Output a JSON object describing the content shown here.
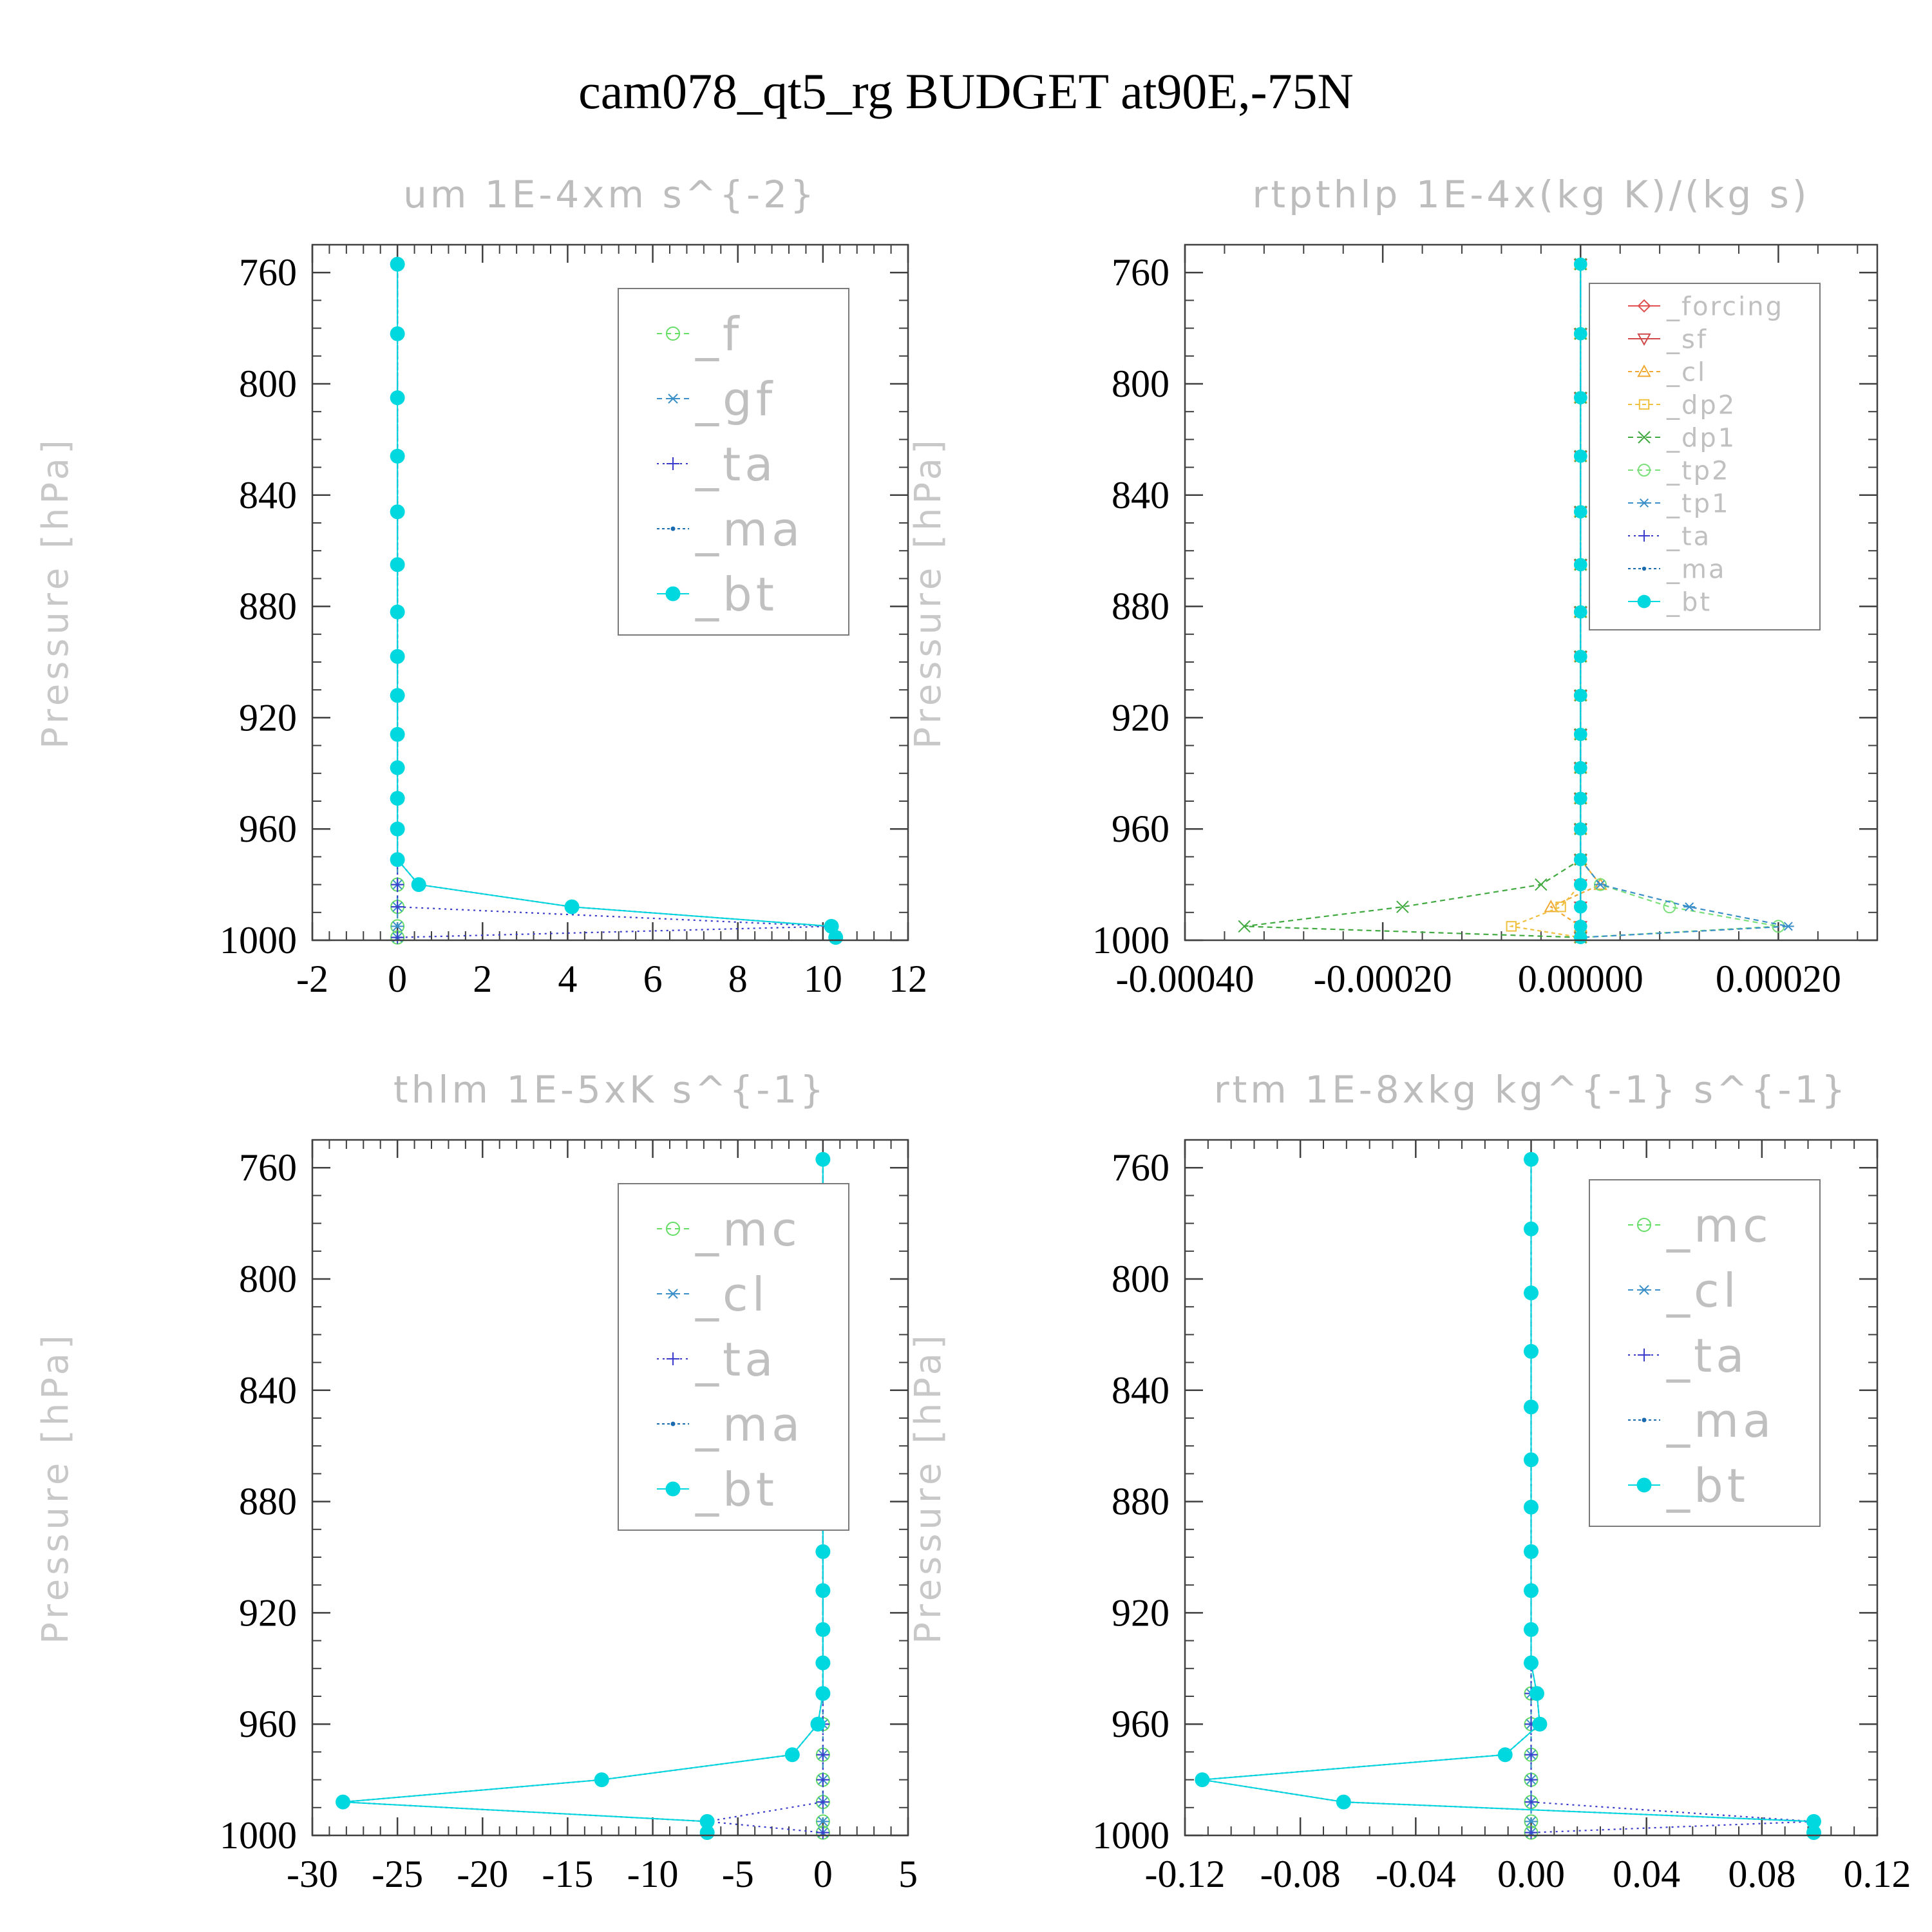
{
  "suptitle": "cam078_qt5_rg  BUDGET at90E,-75N",
  "colors": {
    "_f": "#66dd66",
    "_gf": "#3a8fc8",
    "_ta": "#3a3acc",
    "_ma": "#1a6ab0",
    "_bt": "#00d8e0",
    "_mc": "#66dd66",
    "_cl": "#3a8fc8",
    "_forcing": "#e05050",
    "_sf": "#d04848",
    "_cl_rtpthlp": "#f0a830",
    "_dp2": "#f0c040",
    "_dp1": "#40aa40",
    "_tp2": "#7ae07a",
    "_tp1": "#3a8fc8"
  },
  "chart_data": [
    {
      "type": "line",
      "title": "um   1E-4xm s^{-2}",
      "ylabel": "Pressure [hPa]",
      "xlim": [
        -2,
        12
      ],
      "ylim": [
        1000,
        750
      ],
      "xticks": [
        "-2",
        "0",
        "2",
        "4",
        "6",
        "8",
        "10",
        "12"
      ],
      "xtick_values": [
        -2,
        0,
        2,
        4,
        6,
        8,
        10,
        12
      ],
      "yticks": [
        "760",
        "800",
        "840",
        "880",
        "920",
        "960",
        "1000"
      ],
      "ytick_values": [
        760,
        800,
        840,
        880,
        920,
        960,
        1000
      ],
      "legend_position": "top-right",
      "legend_font": "large",
      "levels": [
        757,
        782,
        805,
        826,
        846,
        865,
        882,
        898,
        912,
        926,
        938,
        949,
        960,
        971,
        980,
        988,
        995,
        999
      ],
      "series": [
        {
          "name": "_f",
          "color_key": "_f",
          "marker": "circle-open",
          "dash": "8,6",
          "values": [
            0,
            0,
            0,
            0,
            0,
            0,
            0,
            0,
            0,
            0,
            0,
            0,
            0,
            0,
            0,
            0,
            0,
            0
          ]
        },
        {
          "name": "_gf",
          "color_key": "_gf",
          "marker": "asterisk",
          "dash": "8,6",
          "values": [
            0,
            0,
            0,
            0,
            0,
            0,
            0,
            0,
            0,
            0,
            0,
            0,
            0,
            0,
            0,
            0,
            0,
            0
          ]
        },
        {
          "name": "_ta",
          "color_key": "_ta",
          "marker": "plus",
          "dash": "3,6",
          "values": [
            0,
            0,
            0,
            0,
            0,
            0,
            0,
            0,
            0,
            0,
            0,
            0,
            0,
            0,
            0,
            0,
            10.2,
            0
          ]
        },
        {
          "name": "_ma",
          "color_key": "_ma",
          "marker": "dot",
          "dash": "4,4",
          "values": [
            0,
            0,
            0,
            0,
            0,
            0,
            0,
            0,
            0,
            0,
            0,
            0,
            0,
            0,
            0.5,
            4.1,
            10.2,
            10.2
          ]
        },
        {
          "name": "_bt",
          "color_key": "_bt",
          "marker": "filled",
          "dash": "",
          "values": [
            0,
            0,
            0,
            0,
            0,
            0,
            0,
            0,
            0,
            0,
            0,
            0,
            0,
            0,
            0.5,
            4.1,
            10.2,
            10.3
          ]
        }
      ]
    },
    {
      "type": "line",
      "title": "rtpthlp   1E-4x(kg K)/(kg s)",
      "ylabel": "Pressure [hPa]",
      "xlim": [
        -0.0004,
        0.0003
      ],
      "ylim": [
        1000,
        750
      ],
      "xticks": [
        "-0.00040",
        "-0.00020",
        "0.00000",
        "0.00020"
      ],
      "xtick_values": [
        -0.0004,
        -0.0002,
        0.0,
        0.0002
      ],
      "yticks": [
        "760",
        "800",
        "840",
        "880",
        "920",
        "960",
        "1000"
      ],
      "ytick_values": [
        760,
        800,
        840,
        880,
        920,
        960,
        1000
      ],
      "legend_position": "top-right",
      "legend_font": "small",
      "levels": [
        757,
        782,
        805,
        826,
        846,
        865,
        882,
        898,
        912,
        926,
        938,
        949,
        960,
        971,
        980,
        988,
        995,
        999
      ],
      "series": [
        {
          "name": "_forcing",
          "color_key": "_forcing",
          "marker": "diamond",
          "dash": "",
          "values": [
            0,
            0,
            0,
            0,
            0,
            0,
            0,
            0,
            0,
            0,
            0,
            0,
            0,
            0,
            0,
            0,
            0,
            0
          ]
        },
        {
          "name": "_sf",
          "color_key": "_sf",
          "marker": "tri-down",
          "dash": "",
          "values": [
            0,
            0,
            0,
            0,
            0,
            0,
            0,
            0,
            0,
            0,
            0,
            0,
            0,
            0,
            0,
            0,
            0,
            0
          ]
        },
        {
          "name": "_cl",
          "color_key": "_cl_rtpthlp",
          "marker": "tri-up",
          "dash": "6,5",
          "values": [
            0,
            0,
            0,
            0,
            0,
            0,
            0,
            0,
            0,
            0,
            0,
            0,
            0,
            0,
            2e-05,
            -3e-05,
            0,
            0
          ]
        },
        {
          "name": "_dp2",
          "color_key": "_dp2",
          "marker": "square",
          "dash": "6,5",
          "values": [
            0,
            0,
            0,
            0,
            0,
            0,
            0,
            0,
            0,
            0,
            0,
            0,
            0,
            0,
            0,
            -2e-05,
            -7e-05,
            0
          ]
        },
        {
          "name": "_dp1",
          "color_key": "_dp1",
          "marker": "x",
          "dash": "8,6",
          "values": [
            0,
            0,
            0,
            0,
            0,
            0,
            0,
            0,
            0,
            0,
            0,
            0,
            0,
            0,
            -4e-05,
            -0.00018,
            -0.00034,
            0
          ]
        },
        {
          "name": "_tp2",
          "color_key": "_tp2",
          "marker": "circle-open",
          "dash": "8,6",
          "values": [
            0,
            0,
            0,
            0,
            0,
            0,
            0,
            0,
            0,
            0,
            0,
            0,
            0,
            0,
            2e-05,
            9e-05,
            0.0002,
            0
          ]
        },
        {
          "name": "_tp1",
          "color_key": "_tp1",
          "marker": "asterisk",
          "dash": "8,6",
          "values": [
            0,
            0,
            0,
            0,
            0,
            0,
            0,
            0,
            0,
            0,
            0,
            0,
            0,
            0,
            2e-05,
            0.00011,
            0.00021,
            0
          ]
        },
        {
          "name": "_ta",
          "color_key": "_ta",
          "marker": "plus",
          "dash": "3,6",
          "values": [
            0,
            0,
            0,
            0,
            0,
            0,
            0,
            0,
            0,
            0,
            0,
            0,
            0,
            0,
            0,
            0,
            0,
            0
          ]
        },
        {
          "name": "_ma",
          "color_key": "_ma",
          "marker": "dot",
          "dash": "4,4",
          "values": [
            0,
            0,
            0,
            0,
            0,
            0,
            0,
            0,
            0,
            0,
            0,
            0,
            0,
            0,
            0,
            0,
            0,
            0
          ]
        },
        {
          "name": "_bt",
          "color_key": "_bt",
          "marker": "filled",
          "dash": "",
          "values": [
            0,
            0,
            0,
            0,
            0,
            0,
            0,
            0,
            0,
            0,
            0,
            0,
            0,
            0,
            0,
            0,
            0,
            0
          ]
        }
      ]
    },
    {
      "type": "line",
      "title": "thlm   1E-5xK s^{-1}",
      "ylabel": "Pressure [hPa]",
      "xlim": [
        -30,
        5
      ],
      "ylim": [
        1000,
        750
      ],
      "xticks": [
        "-30",
        "-25",
        "-20",
        "-15",
        "-10",
        "-5",
        "0",
        "5"
      ],
      "xtick_values": [
        -30,
        -25,
        -20,
        -15,
        -10,
        -5,
        0,
        5
      ],
      "yticks": [
        "760",
        "800",
        "840",
        "880",
        "920",
        "960",
        "1000"
      ],
      "ytick_values": [
        760,
        800,
        840,
        880,
        920,
        960,
        1000
      ],
      "legend_position": "top-right",
      "legend_font": "large",
      "levels": [
        757,
        782,
        805,
        826,
        846,
        865,
        882,
        898,
        912,
        926,
        938,
        949,
        960,
        971,
        980,
        988,
        995,
        999
      ],
      "series": [
        {
          "name": "_mc",
          "color_key": "_mc",
          "marker": "circle-open",
          "dash": "8,6",
          "values": [
            0,
            0,
            0,
            0,
            0,
            0,
            0,
            0,
            0,
            0,
            0,
            0,
            0,
            0,
            0,
            0,
            0,
            0
          ]
        },
        {
          "name": "_cl",
          "color_key": "_cl",
          "marker": "asterisk",
          "dash": "8,6",
          "values": [
            0,
            0,
            0,
            0,
            0,
            0,
            0,
            0,
            0,
            0,
            0,
            0,
            0,
            0,
            0,
            0,
            0,
            0
          ]
        },
        {
          "name": "_ta",
          "color_key": "_ta",
          "marker": "plus",
          "dash": "3,6",
          "values": [
            0,
            0,
            0,
            0,
            0,
            0,
            0,
            0,
            0,
            0,
            0,
            0,
            0,
            0,
            0,
            0,
            -6.8,
            0
          ]
        },
        {
          "name": "_ma",
          "color_key": "_ma",
          "marker": "dot",
          "dash": "4,4",
          "values": [
            0,
            0,
            0,
            0,
            0,
            0,
            0,
            0,
            0,
            0,
            0,
            0,
            -0.3,
            -1.8,
            -13.0,
            -28.2,
            -6.8,
            -6.8
          ]
        },
        {
          "name": "_bt",
          "color_key": "_bt",
          "marker": "filled",
          "dash": "",
          "values": [
            0,
            0,
            0,
            0,
            0,
            0,
            0,
            0,
            0,
            0,
            0,
            0,
            -0.3,
            -1.8,
            -13.0,
            -28.2,
            -6.8,
            -6.8
          ]
        }
      ]
    },
    {
      "type": "line",
      "title": "rtm   1E-8xkg kg^{-1} s^{-1}",
      "ylabel": "Pressure [hPa]",
      "xlim": [
        -0.12,
        0.12
      ],
      "ylim": [
        1000,
        750
      ],
      "xticks": [
        "-0.12",
        "-0.08",
        "-0.04",
        "0.00",
        "0.04",
        "0.08",
        "0.12"
      ],
      "xtick_values": [
        -0.12,
        -0.08,
        -0.04,
        0.0,
        0.04,
        0.08,
        0.12
      ],
      "yticks": [
        "760",
        "800",
        "840",
        "880",
        "920",
        "960",
        "1000"
      ],
      "ytick_values": [
        760,
        800,
        840,
        880,
        920,
        960,
        1000
      ],
      "legend_position": "top-right",
      "legend_font": "large",
      "levels": [
        757,
        782,
        805,
        826,
        846,
        865,
        882,
        898,
        912,
        926,
        938,
        949,
        960,
        971,
        980,
        988,
        995,
        999
      ],
      "series": [
        {
          "name": "_mc",
          "color_key": "_mc",
          "marker": "circle-open",
          "dash": "8,6",
          "values": [
            0,
            0,
            0,
            0,
            0,
            0,
            0,
            0,
            0,
            0,
            0,
            0,
            0,
            0,
            0,
            0,
            0,
            0
          ]
        },
        {
          "name": "_cl",
          "color_key": "_cl",
          "marker": "asterisk",
          "dash": "8,6",
          "values": [
            0,
            0,
            0,
            0,
            0,
            0,
            0,
            0,
            0,
            0,
            0,
            0,
            0,
            0,
            0,
            0,
            0,
            0
          ]
        },
        {
          "name": "_ta",
          "color_key": "_ta",
          "marker": "plus",
          "dash": "3,6",
          "values": [
            0,
            0,
            0,
            0,
            0,
            0,
            0,
            0,
            0,
            0,
            0,
            0,
            0,
            0,
            0,
            0,
            0.098,
            0
          ]
        },
        {
          "name": "_ma",
          "color_key": "_ma",
          "marker": "dot",
          "dash": "4,4",
          "values": [
            0,
            0,
            0,
            0,
            0,
            0,
            0,
            0,
            0,
            0,
            0,
            0.002,
            0.003,
            -0.009,
            -0.114,
            -0.065,
            0.098,
            0.098
          ]
        },
        {
          "name": "_bt",
          "color_key": "_bt",
          "marker": "filled",
          "dash": "",
          "values": [
            0,
            0,
            0,
            0,
            0,
            0,
            0,
            0,
            0,
            0,
            0,
            0.002,
            0.003,
            -0.009,
            -0.114,
            -0.065,
            0.098,
            0.098
          ]
        }
      ]
    }
  ]
}
